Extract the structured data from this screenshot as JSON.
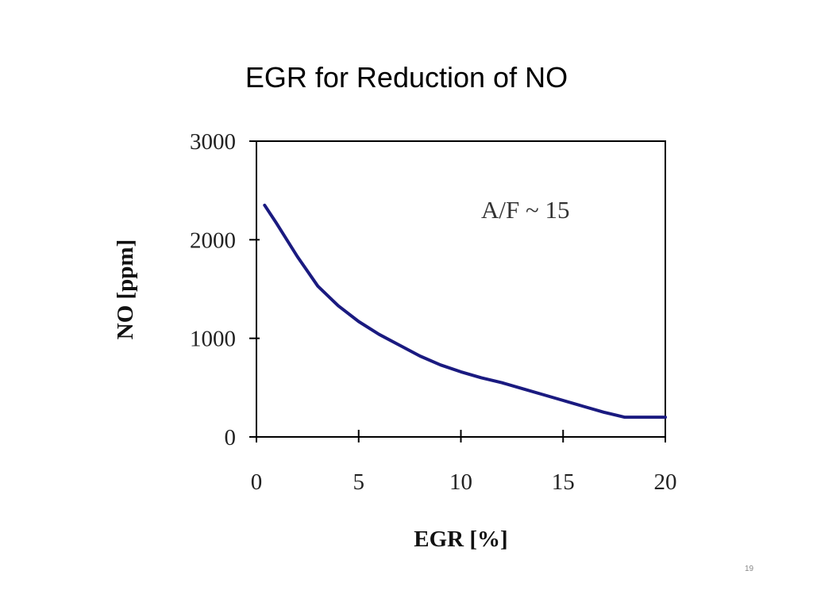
{
  "slide": {
    "title": "EGR for Reduction of NO",
    "page_number": "19"
  },
  "chart_data": {
    "type": "line",
    "title": "",
    "xlabel": "EGR [%]",
    "ylabel": "NO [ppm]",
    "xlim": [
      0,
      20
    ],
    "ylim": [
      0,
      3000
    ],
    "xticks": [
      0,
      5,
      10,
      15,
      20
    ],
    "yticks": [
      0,
      1000,
      2000,
      3000
    ],
    "grid": false,
    "annotation": "A/F ~ 15",
    "series": [
      {
        "color": "#1a1a80",
        "x": [
          0.4,
          1,
          2,
          3,
          4,
          5,
          6,
          7,
          8,
          9,
          10,
          11,
          12,
          13,
          14,
          15,
          16,
          17,
          18,
          19,
          20
        ],
        "y": [
          2350,
          2160,
          1830,
          1530,
          1330,
          1170,
          1040,
          930,
          820,
          730,
          660,
          600,
          550,
          490,
          430,
          370,
          310,
          250,
          200,
          200,
          200
        ]
      }
    ]
  }
}
